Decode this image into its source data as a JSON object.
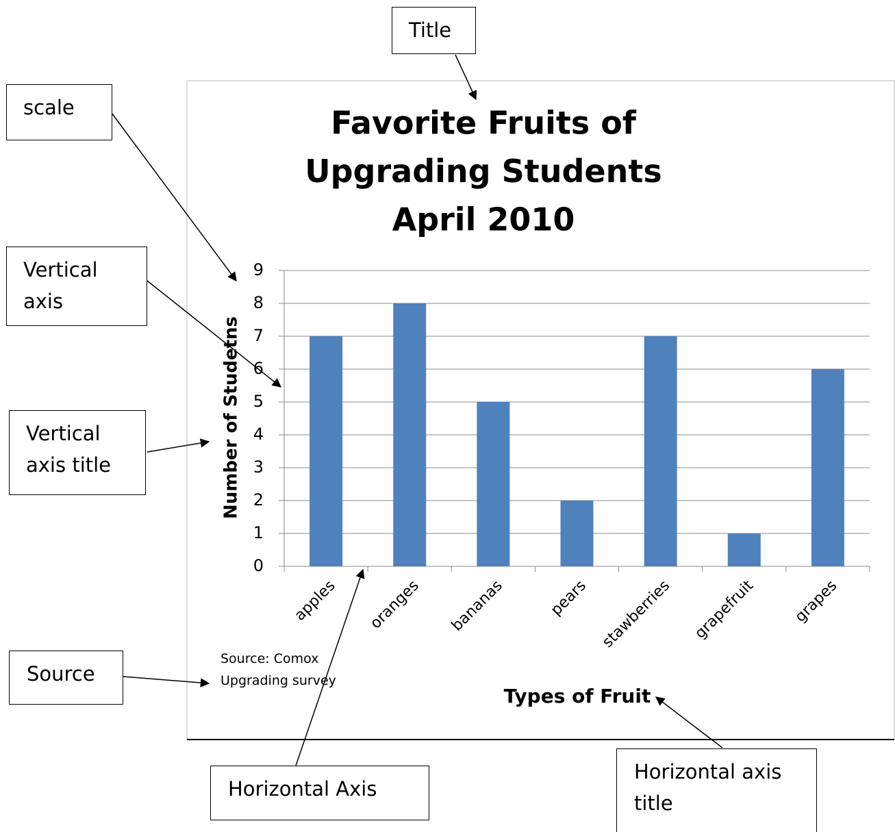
{
  "chart_data": {
    "type": "bar",
    "title": [
      "Favorite Fruits of",
      "Upgrading Students",
      "April 2010"
    ],
    "y_axis_label": "Number of Studetns",
    "x_axis_label": "Types of Fruit",
    "source": "Source: Comox Upgrading survey",
    "categories": [
      "apples",
      "oranges",
      "bananas",
      "pears",
      "stawberries",
      "grapefruit",
      "grapes"
    ],
    "values": [
      7,
      8,
      5,
      2,
      7,
      1,
      6
    ],
    "color": "#4f81bd",
    "ylim": [
      0,
      9
    ],
    "yticks": [
      0,
      1,
      2,
      3,
      4,
      5,
      6,
      7,
      8,
      9
    ],
    "grid": true
  },
  "callouts": [
    "Title",
    "scale",
    "Vertical axis",
    "Vertical axis title",
    "Source",
    "Horizontal Axis",
    "Horizontal axis title"
  ]
}
